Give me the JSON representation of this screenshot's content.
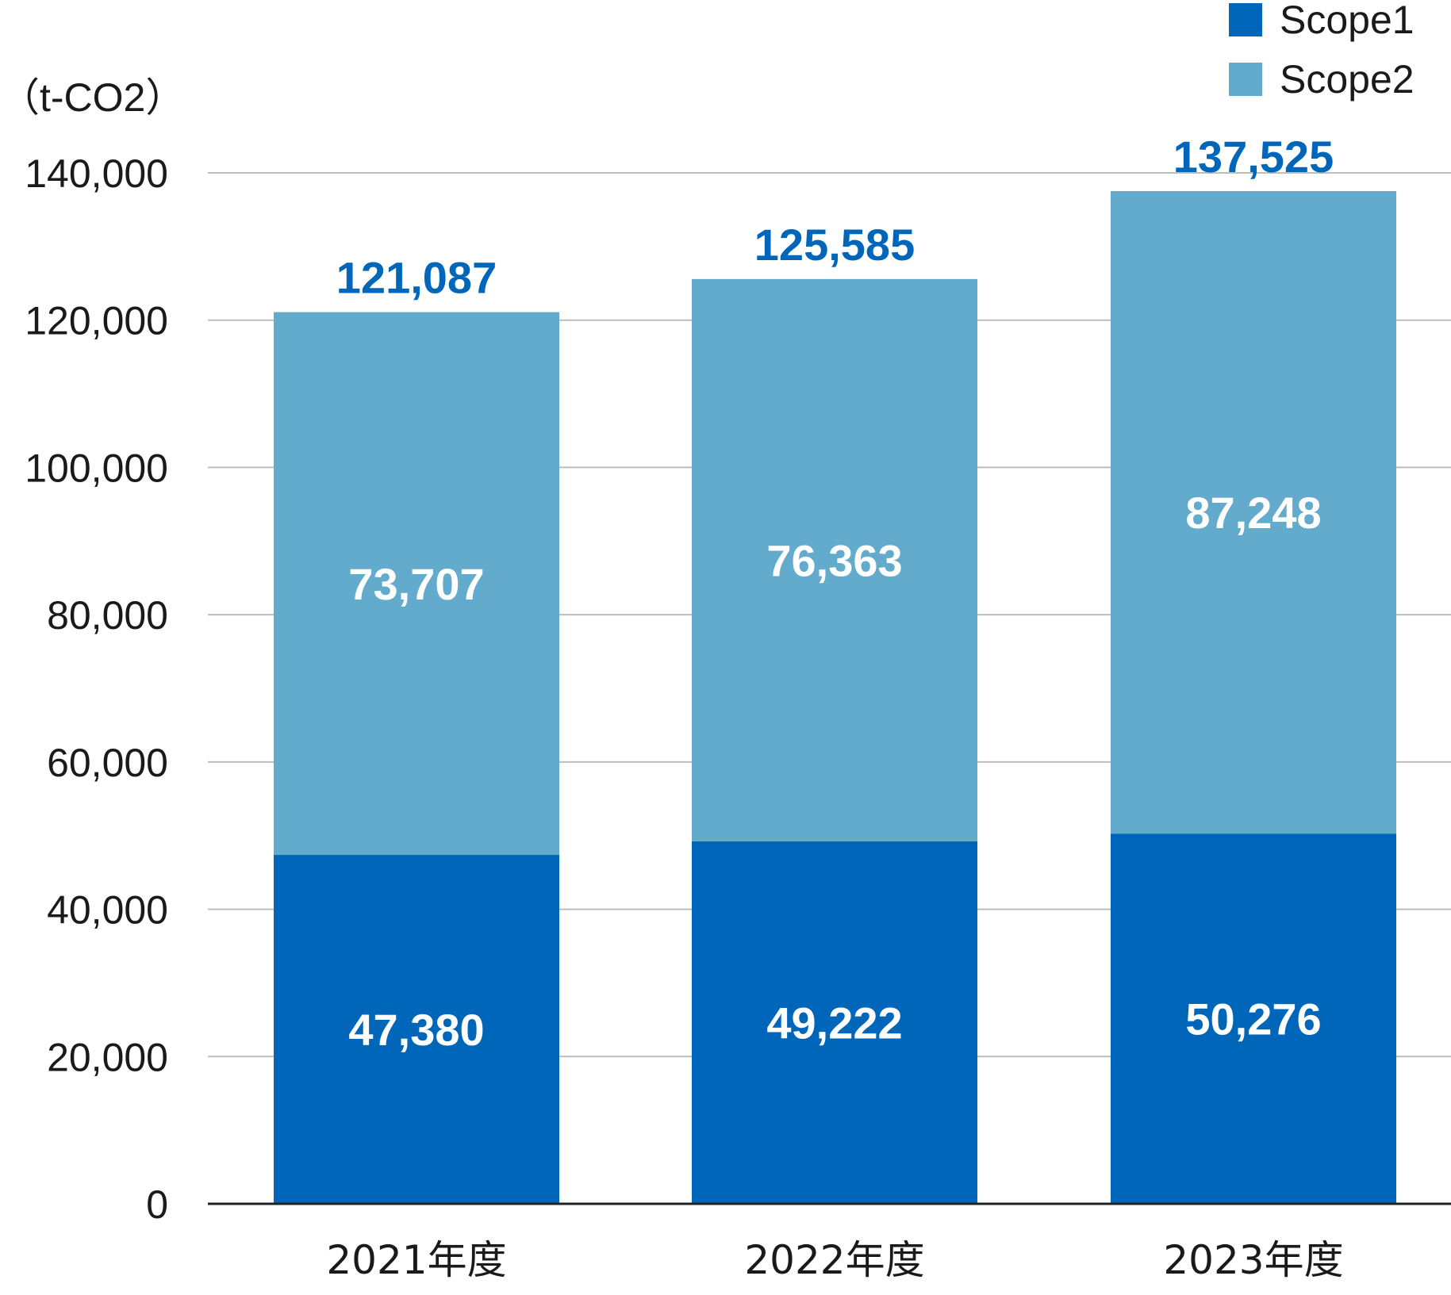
{
  "chart_data": {
    "type": "bar",
    "stacked": true,
    "unit_label": "（t-CO2）",
    "categories": [
      "2021年度",
      "2022年度",
      "2023年度"
    ],
    "series": [
      {
        "name": "Scope1",
        "color": "#0066BA",
        "values": [
          47380,
          49222,
          50276
        ],
        "labels": [
          "47,380",
          "49,222",
          "50,276"
        ]
      },
      {
        "name": "Scope2",
        "color": "#62ABCD",
        "values": [
          73707,
          76363,
          87248
        ],
        "labels": [
          "73,707",
          "76,363",
          "87,248"
        ]
      }
    ],
    "totals": [
      121087,
      125585,
      137525
    ],
    "total_labels": [
      "121,087",
      "125,585",
      "137,525"
    ],
    "total_label_color": "#0066BA",
    "ylim": [
      0,
      140000
    ],
    "y_ticks": [
      0,
      20000,
      40000,
      60000,
      80000,
      100000,
      120000,
      140000
    ],
    "y_tick_labels": [
      "0",
      "20,000",
      "40,000",
      "60,000",
      "80,000",
      "100,000",
      "120,000",
      "140,000"
    ],
    "grid": true,
    "legend_position": "top-right"
  }
}
